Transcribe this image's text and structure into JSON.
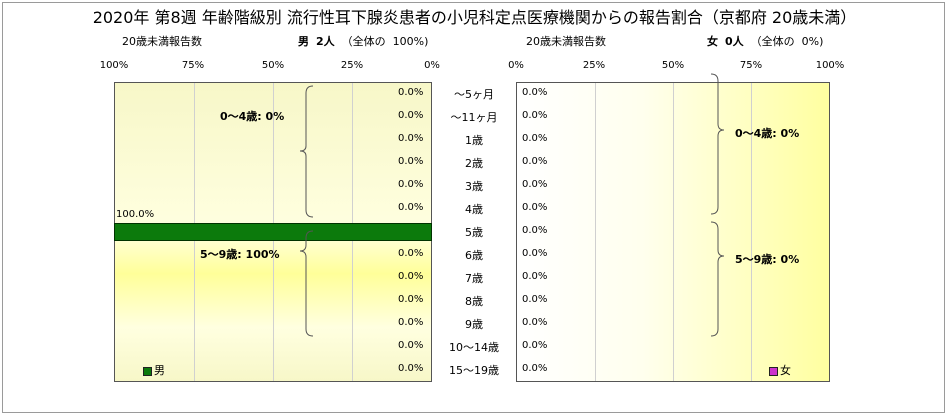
{
  "title": "2020年 第8週 年齢階級別 流行性耳下腺炎患者の小児科定点医療機関からの報告割合（京都府 20歳未満）",
  "male": {
    "count_label": "20歳未満報告数",
    "name": "男",
    "count": "2人",
    "total_label": "（全体の",
    "total_pct": "100%)",
    "legend": "男",
    "color": "#0c7a0c"
  },
  "female": {
    "count_label": "20歳未満報告数",
    "name": "女",
    "count": "0人",
    "total_label": "（全体の",
    "total_pct": "0%)",
    "legend": "女",
    "color": "#cc33cc"
  },
  "male_ticks": [
    "100%",
    "75%",
    "50%",
    "25%",
    "0%"
  ],
  "female_ticks": [
    "0%",
    "25%",
    "50%",
    "75%",
    "100%"
  ],
  "groups": {
    "male_0_4": "0～4歳: 0%",
    "male_5_9": "5～9歳: 100%",
    "female_0_4": "0～4歳: 0%",
    "female_5_9": "5～9歳: 0%"
  },
  "chart_data": {
    "type": "bar",
    "categories": [
      "～5ヶ月",
      "～11ヶ月",
      "1歳",
      "2歳",
      "3歳",
      "4歳",
      "5歳",
      "6歳",
      "7歳",
      "8歳",
      "9歳",
      "10～14歳",
      "15～19歳"
    ],
    "series": [
      {
        "name": "男",
        "values": [
          0,
          0,
          0,
          0,
          0,
          0,
          100,
          0,
          0,
          0,
          0,
          0,
          0
        ],
        "labels": [
          "0.0%",
          "0.0%",
          "0.0%",
          "0.0%",
          "0.0%",
          "0.0%",
          "100.0%",
          "0.0%",
          "0.0%",
          "0.0%",
          "0.0%",
          "0.0%",
          "0.0%"
        ]
      },
      {
        "name": "女",
        "values": [
          0,
          0,
          0,
          0,
          0,
          0,
          0,
          0,
          0,
          0,
          0,
          0,
          0
        ],
        "labels": [
          "0.0%",
          "0.0%",
          "0.0%",
          "0.0%",
          "0.0%",
          "0.0%",
          "0.0%",
          "0.0%",
          "0.0%",
          "0.0%",
          "0.0%",
          "0.0%",
          "0.0%"
        ]
      }
    ],
    "xlim": [
      0,
      100
    ],
    "grid": true,
    "legend": "bottom"
  }
}
